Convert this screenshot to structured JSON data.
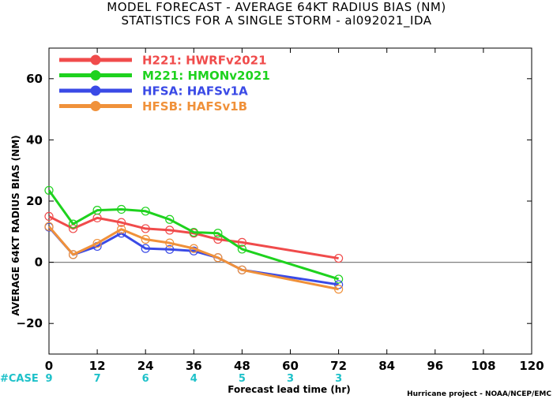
{
  "titles": {
    "line1": "MODEL FORECAST - AVERAGE 64KT RADIUS BIAS (NM)",
    "line2": "STATISTICS FOR A SINGLE STORM - al092021_IDA"
  },
  "colors": {
    "H221": "#f04b4b",
    "M221": "#1ed21e",
    "HFSA": "#3a4ae6",
    "HFSB": "#f0913a",
    "case": "#1ec1c9",
    "zero_line": "#808080"
  },
  "chart_data": {
    "type": "line",
    "title": "MODEL FORECAST - AVERAGE 64KT RADIUS BIAS (NM)",
    "subtitle": "STATISTICS FOR A SINGLE STORM - al092021_IDA",
    "xlabel": "Forecast lead time (hr)",
    "ylabel": "AVERAGE 64KT RADIUS BIAS (NM)",
    "xlim": [
      0,
      120
    ],
    "ylim": [
      -30,
      70
    ],
    "xticks": [
      0,
      12,
      24,
      36,
      48,
      60,
      72,
      84,
      96,
      108,
      120
    ],
    "yticks": [
      -20,
      0,
      20,
      40,
      60
    ],
    "x": [
      0,
      6,
      12,
      18,
      24,
      30,
      36,
      42,
      48,
      72
    ],
    "series": [
      {
        "key": "H221",
        "name": "H221:",
        "label": "HWRFv2021",
        "x": [
          0,
          6,
          12,
          18,
          24,
          30,
          36,
          42,
          48,
          72
        ],
        "values": [
          15,
          11,
          14.5,
          13,
          11,
          10.5,
          9.5,
          7.5,
          6.5,
          1.3
        ]
      },
      {
        "key": "M221",
        "name": "M221:",
        "label": "HMONv2021",
        "x": [
          0,
          6,
          12,
          18,
          24,
          30,
          36,
          42,
          48,
          72
        ],
        "values": [
          23.5,
          12.5,
          17,
          17.3,
          16.7,
          14,
          9.8,
          9.5,
          4.3,
          -5.5
        ]
      },
      {
        "key": "HFSA",
        "name": "HFSA:",
        "label": "HAFSv1A",
        "x": [
          0,
          6,
          12,
          18,
          24,
          30,
          36,
          42,
          48,
          72
        ],
        "values": [
          11.5,
          2.5,
          5.2,
          9.5,
          4.5,
          4.2,
          3.7,
          1.5,
          -2.5,
          -7.3
        ]
      },
      {
        "key": "HFSB",
        "name": "HFSB:",
        "label": "HAFSv1B",
        "x": [
          0,
          6,
          12,
          18,
          24,
          30,
          36,
          42,
          48,
          72
        ],
        "values": [
          11.7,
          2.5,
          6.2,
          10.8,
          7.5,
          6.3,
          4.5,
          1.5,
          -2.5,
          -8.8
        ]
      }
    ],
    "zero_line": true,
    "legend_position": "top-left",
    "grid": false,
    "cases": {
      "label": "#CASE",
      "x": [
        0,
        12,
        24,
        36,
        48,
        60,
        72
      ],
      "counts": [
        "9",
        "7",
        "6",
        "4",
        "5",
        "3",
        "3"
      ]
    },
    "credit": "Hurricane project - NOAA/NCEP/EMC"
  }
}
